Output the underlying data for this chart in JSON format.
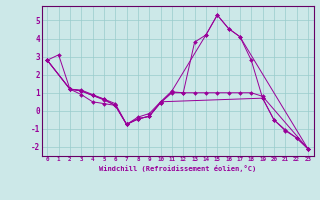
{
  "xlabel": "Windchill (Refroidissement éolien,°C)",
  "bg_color": "#cce8e8",
  "line_color": "#990099",
  "grid_color": "#99cccc",
  "spine_color": "#660066",
  "xlim": [
    -0.5,
    23.5
  ],
  "ylim": [
    -2.5,
    5.8
  ],
  "yticks": [
    -2,
    -1,
    0,
    1,
    2,
    3,
    4,
    5
  ],
  "xticks": [
    0,
    1,
    2,
    3,
    4,
    5,
    6,
    7,
    8,
    9,
    10,
    11,
    12,
    13,
    14,
    15,
    16,
    17,
    18,
    19,
    20,
    21,
    22,
    23
  ],
  "series1_x": [
    0,
    1,
    2,
    3,
    4,
    5,
    6,
    7,
    8,
    9,
    10,
    11,
    14,
    15,
    16,
    17,
    23
  ],
  "series1_y": [
    2.8,
    3.1,
    1.2,
    0.9,
    0.5,
    0.4,
    0.3,
    -0.75,
    -0.35,
    -0.15,
    0.5,
    1.1,
    4.2,
    5.3,
    4.55,
    4.1,
    -2.1
  ],
  "series2_x": [
    0,
    2,
    3,
    4,
    5,
    6,
    7,
    8,
    9,
    10,
    11,
    12,
    13,
    14,
    15,
    16,
    17,
    18,
    19,
    23
  ],
  "series2_y": [
    2.8,
    1.2,
    1.1,
    0.85,
    0.65,
    0.3,
    -0.75,
    -0.45,
    -0.3,
    0.45,
    1.0,
    1.0,
    1.0,
    1.0,
    1.0,
    1.0,
    1.0,
    1.0,
    0.8,
    -2.1
  ],
  "series3_x": [
    0,
    2,
    3,
    4,
    5,
    6,
    7,
    8,
    9,
    10,
    19,
    20,
    21,
    22,
    23
  ],
  "series3_y": [
    2.8,
    1.2,
    1.15,
    0.9,
    0.65,
    0.4,
    -0.75,
    -0.45,
    -0.3,
    0.5,
    0.7,
    -0.5,
    -1.1,
    -1.5,
    -2.1
  ],
  "series4_x": [
    0,
    2,
    3,
    4,
    5,
    6,
    7,
    8,
    9,
    10,
    11,
    12,
    13,
    14,
    15,
    16,
    17,
    18,
    19,
    20,
    21,
    22,
    23
  ],
  "series4_y": [
    2.8,
    1.2,
    1.1,
    0.85,
    0.6,
    0.3,
    -0.75,
    -0.45,
    -0.3,
    0.45,
    1.05,
    1.0,
    3.8,
    4.2,
    5.3,
    4.55,
    4.1,
    2.8,
    0.7,
    -0.5,
    -1.05,
    -1.5,
    -2.1
  ]
}
